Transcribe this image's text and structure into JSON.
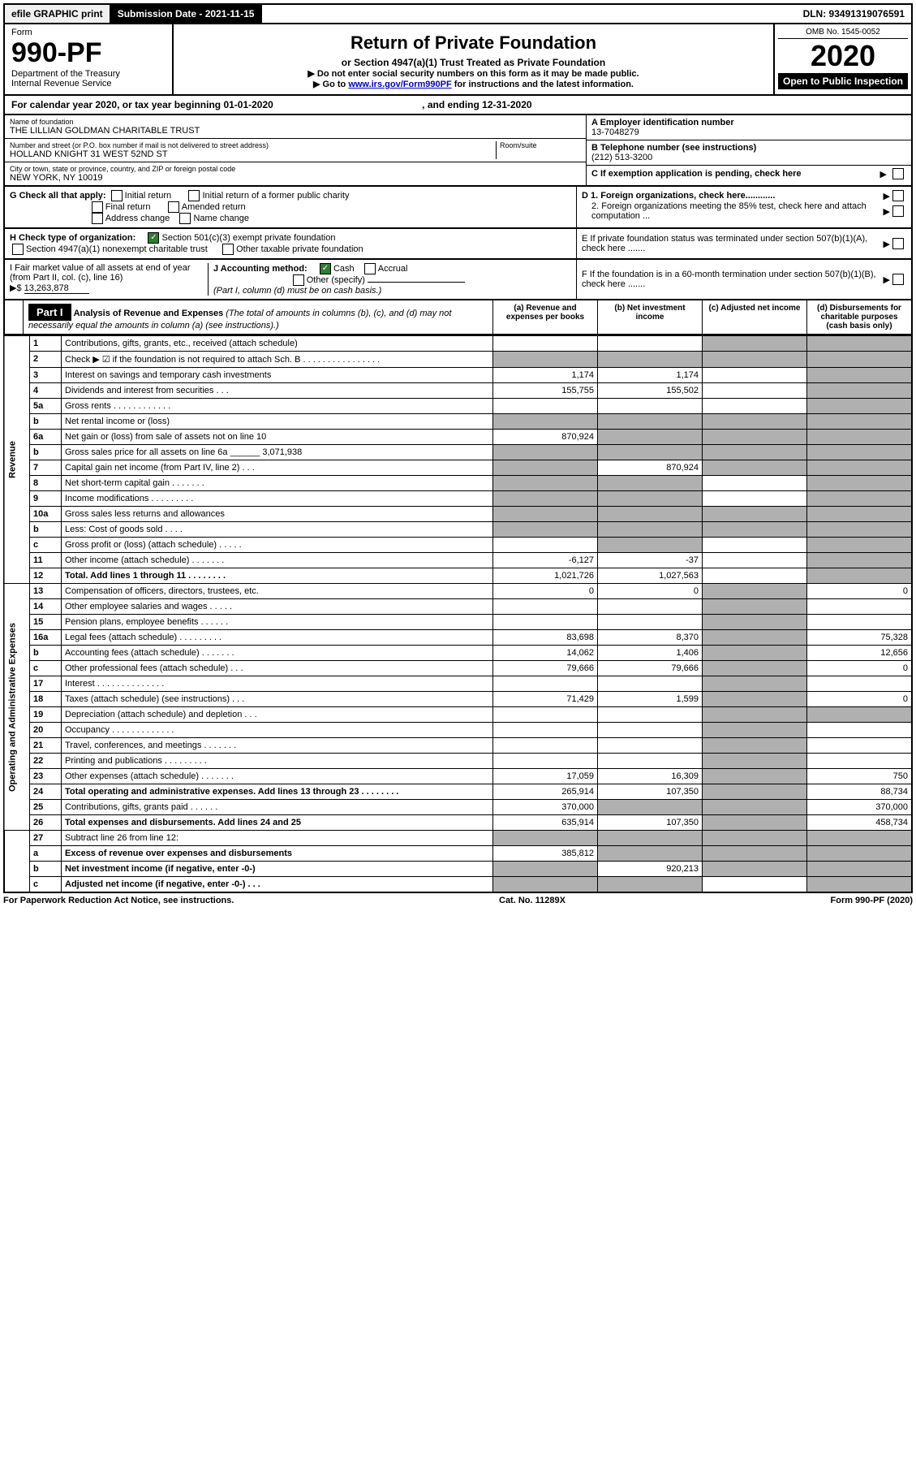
{
  "top": {
    "efile": "efile GRAPHIC print",
    "submission": "Submission Date - 2021-11-15",
    "dln": "DLN: 93491319076591"
  },
  "header": {
    "form_label": "Form",
    "form_number": "990-PF",
    "dept1": "Department of the Treasury",
    "dept2": "Internal Revenue Service",
    "title": "Return of Private Foundation",
    "subtitle": "or Section 4947(a)(1) Trust Treated as Private Foundation",
    "note1": "▶ Do not enter social security numbers on this form as it may be made public.",
    "note2_prefix": "▶ Go to ",
    "note2_link": "www.irs.gov/Form990PF",
    "note2_suffix": " for instructions and the latest information.",
    "omb": "OMB No. 1545-0052",
    "year": "2020",
    "open": "Open to Public Inspection"
  },
  "calyear": {
    "text": "For calendar year 2020, or tax year beginning 01-01-2020",
    "ending": ", and ending 12-31-2020"
  },
  "info": {
    "name_label": "Name of foundation",
    "name": "THE LILLIAN GOLDMAN CHARITABLE TRUST",
    "addr_label": "Number and street (or P.O. box number if mail is not delivered to street address)",
    "addr": "HOLLAND KNIGHT 31 WEST 52ND ST",
    "room_label": "Room/suite",
    "city_label": "City or town, state or province, country, and ZIP or foreign postal code",
    "city": "NEW YORK, NY  10019",
    "ein_label": "A Employer identification number",
    "ein": "13-7048279",
    "tel_label": "B Telephone number (see instructions)",
    "tel": "(212) 513-3200",
    "c_label": "C If exemption application is pending, check here"
  },
  "checks": {
    "g_label": "G Check all that apply:",
    "g_opts": [
      "Initial return",
      "Initial return of a former public charity",
      "Final return",
      "Amended return",
      "Address change",
      "Name change"
    ],
    "h_label": "H Check type of organization:",
    "h_opt1": "Section 501(c)(3) exempt private foundation",
    "h_opt2": "Section 4947(a)(1) nonexempt charitable trust",
    "h_opt3": "Other taxable private foundation",
    "i_label": "I Fair market value of all assets at end of year (from Part II, col. (c), line 16)",
    "i_val": "13,263,878",
    "j_label": "J Accounting method:",
    "j_cash": "Cash",
    "j_accrual": "Accrual",
    "j_other": "Other (specify)",
    "j_note": "(Part I, column (d) must be on cash basis.)",
    "d1": "D 1. Foreign organizations, check here............",
    "d2": "2. Foreign organizations meeting the 85% test, check here and attach computation ...",
    "e": "E  If private foundation status was terminated under section 507(b)(1)(A), check here .......",
    "f": "F  If the foundation is in a 60-month termination under section 507(b)(1)(B), check here .......",
    "dollar": "▶$"
  },
  "part1": {
    "label": "Part I",
    "title": "Analysis of Revenue and Expenses",
    "title_note": "(The total of amounts in columns (b), (c), and (d) may not necessarily equal the amounts in column (a) (see instructions).)",
    "col_a": "(a)   Revenue and expenses per books",
    "col_b": "(b)   Net investment income",
    "col_c": "(c)   Adjusted net income",
    "col_d": "(d)   Disbursements for charitable purposes (cash basis only)"
  },
  "sections": {
    "revenue": "Revenue",
    "expenses": "Operating and Administrative Expenses"
  },
  "rows": [
    {
      "n": "1",
      "d": "Contributions, gifts, grants, etc., received (attach schedule)",
      "a": "",
      "b": "",
      "c": "shaded",
      "dd": "shaded"
    },
    {
      "n": "2",
      "d": "Check ▶ ☑ if the foundation is not required to attach Sch. B     .  .  .  .  .  .  .  .  .  .  .  .  .  .  .  .",
      "a": "shaded",
      "b": "shaded",
      "c": "shaded",
      "dd": "shaded"
    },
    {
      "n": "3",
      "d": "Interest on savings and temporary cash investments",
      "a": "1,174",
      "b": "1,174",
      "c": "",
      "dd": "shaded"
    },
    {
      "n": "4",
      "d": "Dividends and interest from securities    .   .   .",
      "a": "155,755",
      "b": "155,502",
      "c": "",
      "dd": "shaded"
    },
    {
      "n": "5a",
      "d": "Gross rents    .   .   .   .   .   .   .   .   .   .   .   .",
      "a": "",
      "b": "",
      "c": "",
      "dd": "shaded"
    },
    {
      "n": "b",
      "d": "Net rental income or (loss)",
      "a": "shaded",
      "b": "shaded",
      "c": "shaded",
      "dd": "shaded"
    },
    {
      "n": "6a",
      "d": "Net gain or (loss) from sale of assets not on line 10",
      "a": "870,924",
      "b": "shaded",
      "c": "shaded",
      "dd": "shaded"
    },
    {
      "n": "b",
      "d": "Gross sales price for all assets on line 6a ______ 3,071,938",
      "a": "shaded",
      "b": "shaded",
      "c": "shaded",
      "dd": "shaded"
    },
    {
      "n": "7",
      "d": "Capital gain net income (from Part IV, line 2)    .   .   .",
      "a": "shaded",
      "b": "870,924",
      "c": "shaded",
      "dd": "shaded"
    },
    {
      "n": "8",
      "d": "Net short-term capital gain   .   .   .   .   .   .   .",
      "a": "shaded",
      "b": "shaded",
      "c": "",
      "dd": "shaded"
    },
    {
      "n": "9",
      "d": "Income modifications   .   .   .   .   .   .   .   .   .",
      "a": "shaded",
      "b": "shaded",
      "c": "",
      "dd": "shaded"
    },
    {
      "n": "10a",
      "d": "Gross sales less returns and allowances",
      "a": "shaded",
      "b": "shaded",
      "c": "shaded",
      "dd": "shaded"
    },
    {
      "n": "b",
      "d": "Less: Cost of goods sold     .   .   .   .",
      "a": "shaded",
      "b": "shaded",
      "c": "shaded",
      "dd": "shaded"
    },
    {
      "n": "c",
      "d": "Gross profit or (loss) (attach schedule)       .   .   .   .   .",
      "a": "",
      "b": "shaded",
      "c": "",
      "dd": "shaded"
    },
    {
      "n": "11",
      "d": "Other income (attach schedule)    .   .   .   .   .   .   .",
      "a": "-6,127",
      "b": "-37",
      "c": "",
      "dd": "shaded"
    },
    {
      "n": "12",
      "d": "Total. Add lines 1 through 11    .   .   .   .   .   .   .   .",
      "a": "1,021,726",
      "b": "1,027,563",
      "c": "",
      "dd": "shaded",
      "bold": true
    }
  ],
  "exp_rows": [
    {
      "n": "13",
      "d": "Compensation of officers, directors, trustees, etc.",
      "a": "0",
      "b": "0",
      "c": "shaded",
      "dd": "0"
    },
    {
      "n": "14",
      "d": "Other employee salaries and wages    .   .   .   .   .",
      "a": "",
      "b": "",
      "c": "shaded",
      "dd": ""
    },
    {
      "n": "15",
      "d": "Pension plans, employee benefits   .   .   .   .   .   .",
      "a": "",
      "b": "",
      "c": "shaded",
      "dd": ""
    },
    {
      "n": "16a",
      "d": "Legal fees (attach schedule)  .   .   .   .   .   .   .   .   .",
      "a": "83,698",
      "b": "8,370",
      "c": "shaded",
      "dd": "75,328"
    },
    {
      "n": "b",
      "d": "Accounting fees (attach schedule)  .   .   .   .   .   .   .",
      "a": "14,062",
      "b": "1,406",
      "c": "shaded",
      "dd": "12,656"
    },
    {
      "n": "c",
      "d": "Other professional fees (attach schedule)     .   .   .",
      "a": "79,666",
      "b": "79,666",
      "c": "shaded",
      "dd": "0"
    },
    {
      "n": "17",
      "d": "Interest   .   .   .   .   .   .   .   .   .   .   .   .   .   .",
      "a": "",
      "b": "",
      "c": "shaded",
      "dd": ""
    },
    {
      "n": "18",
      "d": "Taxes (attach schedule) (see instructions)       .   .   .",
      "a": "71,429",
      "b": "1,599",
      "c": "shaded",
      "dd": "0"
    },
    {
      "n": "19",
      "d": "Depreciation (attach schedule) and depletion    .   .   .",
      "a": "",
      "b": "",
      "c": "shaded",
      "dd": "shaded"
    },
    {
      "n": "20",
      "d": "Occupancy  .   .   .   .   .   .   .   .   .   .   .   .   .",
      "a": "",
      "b": "",
      "c": "shaded",
      "dd": ""
    },
    {
      "n": "21",
      "d": "Travel, conferences, and meetings  .   .   .   .   .   .   .",
      "a": "",
      "b": "",
      "c": "shaded",
      "dd": ""
    },
    {
      "n": "22",
      "d": "Printing and publications  .   .   .   .   .   .   .   .   .",
      "a": "",
      "b": "",
      "c": "shaded",
      "dd": ""
    },
    {
      "n": "23",
      "d": "Other expenses (attach schedule)  .   .   .   .   .   .   .",
      "a": "17,059",
      "b": "16,309",
      "c": "shaded",
      "dd": "750"
    },
    {
      "n": "24",
      "d": "Total operating and administrative expenses. Add lines 13 through 23   .   .   .   .   .   .   .   .",
      "a": "265,914",
      "b": "107,350",
      "c": "shaded",
      "dd": "88,734",
      "bold": true
    },
    {
      "n": "25",
      "d": "Contributions, gifts, grants paid     .   .   .   .   .   .",
      "a": "370,000",
      "b": "shaded",
      "c": "shaded",
      "dd": "370,000"
    },
    {
      "n": "26",
      "d": "Total expenses and disbursements. Add lines 24 and 25",
      "a": "635,914",
      "b": "107,350",
      "c": "shaded",
      "dd": "458,734",
      "bold": true
    }
  ],
  "bottom_rows": [
    {
      "n": "27",
      "d": "Subtract line 26 from line 12:",
      "a": "shaded",
      "b": "shaded",
      "c": "shaded",
      "dd": "shaded"
    },
    {
      "n": "a",
      "d": "Excess of revenue over expenses and disbursements",
      "a": "385,812",
      "b": "shaded",
      "c": "shaded",
      "dd": "shaded",
      "bold": true
    },
    {
      "n": "b",
      "d": "Net investment income (if negative, enter -0-)",
      "a": "shaded",
      "b": "920,213",
      "c": "shaded",
      "dd": "shaded",
      "bold": true
    },
    {
      "n": "c",
      "d": "Adjusted net income (if negative, enter -0-)   .   .   .",
      "a": "shaded",
      "b": "shaded",
      "c": "",
      "dd": "shaded",
      "bold": true
    }
  ],
  "footer": {
    "left": "For Paperwork Reduction Act Notice, see instructions.",
    "center": "Cat. No. 11289X",
    "right": "Form 990-PF (2020)"
  }
}
